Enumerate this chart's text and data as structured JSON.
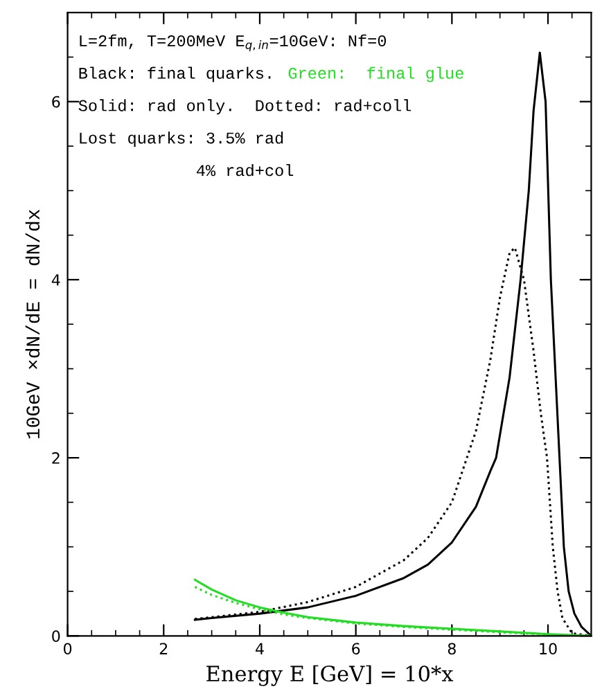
{
  "chart_data": {
    "type": "line",
    "xlabel": "Energy E [GeV] = 10*x",
    "ylabel": "10GeV ×dN/dE = dN/dx",
    "xlim": [
      0,
      10.9
    ],
    "ylim": [
      0,
      7
    ],
    "xticks": [
      0,
      2,
      4,
      6,
      8,
      10
    ],
    "yticks": [
      0,
      2,
      4,
      6
    ],
    "grid": false,
    "legend": false,
    "marker": "none",
    "annotations": [
      "L=2fm, T=200MeV E$_{q,in}$=10GeV: Nf=0",
      "Black: final quarks.",
      "Green:  final glue",
      "Solid: rad only.  Dotted: rad+coll",
      "Lost quarks: 3.5% rad",
      "            4% rad+col"
    ],
    "series": [
      {
        "color": "#000000",
        "line_style": "solid",
        "x": [
          2.65,
          3,
          4,
          5,
          6,
          7,
          7.5,
          8,
          8.5,
          8.8,
          8.92,
          9.2,
          9.43,
          9.6,
          9.7,
          9.83,
          9.95,
          10.06,
          10.15,
          10.24,
          10.33,
          10.43,
          10.55,
          10.7,
          10.9
        ],
        "values": [
          0.18,
          0.2,
          0.25,
          0.32,
          0.45,
          0.65,
          0.8,
          1.05,
          1.45,
          1.85,
          2.0,
          2.9,
          4.0,
          5.0,
          5.9,
          6.55,
          6.0,
          4.0,
          3.0,
          2.0,
          1.0,
          0.5,
          0.25,
          0.1,
          0.0
        ]
      },
      {
        "color": "#000000",
        "line_style": "dotted",
        "x": [
          2.65,
          3,
          4,
          5,
          6,
          7,
          7.5,
          8,
          8.5,
          8.8,
          9.0,
          9.2,
          9.31,
          9.5,
          9.7,
          9.85,
          9.98,
          10.1,
          10.2,
          10.3,
          10.5,
          10.9
        ],
        "values": [
          0.19,
          0.21,
          0.27,
          0.38,
          0.55,
          0.85,
          1.1,
          1.5,
          2.3,
          3.1,
          3.8,
          4.3,
          4.36,
          4.0,
          3.2,
          2.5,
          2.0,
          1.0,
          0.5,
          0.2,
          0.03,
          0.0
        ]
      },
      {
        "color": "#22dd22",
        "line_style": "solid",
        "x": [
          2.65,
          3,
          3.5,
          4,
          4.5,
          5,
          6,
          7,
          8,
          9,
          10,
          10.9
        ],
        "values": [
          0.63,
          0.52,
          0.4,
          0.32,
          0.26,
          0.21,
          0.15,
          0.11,
          0.08,
          0.05,
          0.02,
          0.0
        ]
      },
      {
        "color": "#22dd22",
        "line_style": "dotted",
        "x": [
          2.65,
          3,
          3.5,
          4,
          4.5,
          5,
          6,
          7,
          8,
          9,
          10,
          10.9
        ],
        "values": [
          0.55,
          0.46,
          0.37,
          0.3,
          0.24,
          0.2,
          0.14,
          0.1,
          0.07,
          0.04,
          0.015,
          0.0
        ]
      }
    ]
  }
}
